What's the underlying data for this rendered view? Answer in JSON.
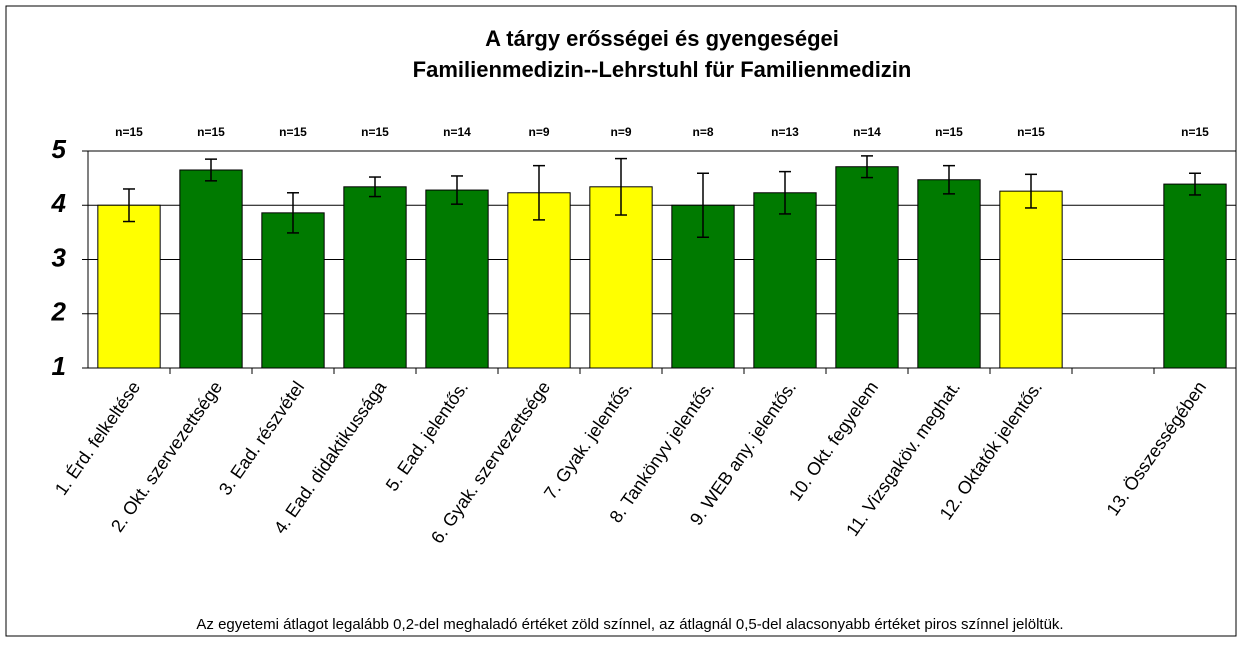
{
  "chart_data": {
    "type": "bar",
    "title": "A tárgy erősségei és gyengeségei",
    "subtitle": "Familienmedizin--Lehrstuhl für Familienmedizin",
    "categories": [
      "1. Érd. felkeltése",
      "2. Okt. szervezettsége",
      "3. Ead. részvétel",
      "4. Ead. didaktikussága",
      "5. Ead. jelentős.",
      "6. Gyak. szervezettsége",
      "7. Gyak. jelentős.",
      "8. Tankönyv jelentős.",
      "9. WEB any. jelentős.",
      "10. Okt. fegyelem",
      "11. Vizsgaköv. meghat.",
      "12. Oktatók jelentős.",
      null,
      "13. Összességében"
    ],
    "values": [
      4.0,
      4.65,
      3.86,
      4.34,
      4.28,
      4.23,
      4.34,
      4.0,
      4.23,
      4.71,
      4.47,
      4.26,
      null,
      4.39
    ],
    "errors": [
      0.3,
      0.2,
      0.37,
      0.18,
      0.26,
      0.5,
      0.52,
      0.59,
      0.39,
      0.2,
      0.26,
      0.31,
      null,
      0.2
    ],
    "colors": [
      "#ffff00",
      "#007a00",
      "#007a00",
      "#007a00",
      "#007a00",
      "#ffff00",
      "#ffff00",
      "#007a00",
      "#007a00",
      "#007a00",
      "#007a00",
      "#ffff00",
      null,
      "#007a00"
    ],
    "annotations": [
      "n=15",
      "n=15",
      "n=15",
      "n=15",
      "n=14",
      "n=9",
      "n=9",
      "n=8",
      "n=13",
      "n=14",
      "n=15",
      "n=15",
      null,
      "n=15"
    ],
    "ylim": [
      1,
      5
    ],
    "yticks": [
      1,
      2,
      3,
      4,
      5
    ],
    "grid": true,
    "footnote": "Az egyetemi átlagot legalább 0,2-del meghaladó értéket zöld színnel, az átlagnál 0,5-del alacsonyabb értéket piros színnel jelöltük."
  }
}
